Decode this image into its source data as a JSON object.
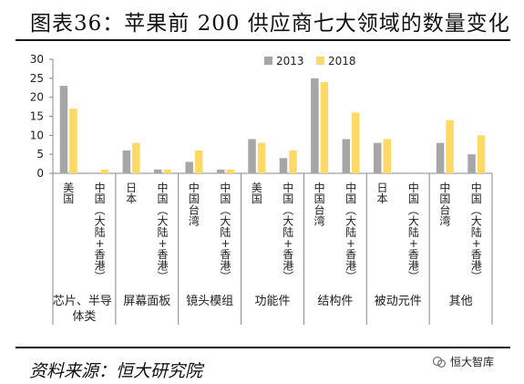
{
  "header": {
    "title": "图表36：苹果前 200 供应商七大领域的数量变化"
  },
  "footer": {
    "source": "资料来源：恒大研究院",
    "watermark": "恒大智库"
  },
  "colors": {
    "s2013": "#A6A6A6",
    "s2018": "#FFD966",
    "axis": "#888888",
    "text": "#222222"
  },
  "chart_data": {
    "type": "bar",
    "ylim": [
      0,
      30
    ],
    "yticks": [
      0,
      5,
      10,
      15,
      20,
      25,
      30
    ],
    "legend_position": "top-center",
    "grid": false,
    "groups": [
      {
        "name": "芯片、半导体类",
        "count": 2
      },
      {
        "name": "屏幕面板",
        "count": 2
      },
      {
        "name": "镜头模组",
        "count": 2
      },
      {
        "name": "功能件",
        "count": 2
      },
      {
        "name": "结构件",
        "count": 2
      },
      {
        "name": "被动元件",
        "count": 2
      },
      {
        "name": "其他",
        "count": 2
      }
    ],
    "categories": [
      "美国",
      "中国（大陆+香港）",
      "日本",
      "中国（大陆+香港）",
      "中国台湾",
      "中国（大陆+香港）",
      "美国",
      "中国（大陆+香港）",
      "中国台湾",
      "中国（大陆+香港）",
      "日本",
      "中国（大陆+香港）",
      "中国台湾",
      "中国（大陆+香港）"
    ],
    "series": [
      {
        "name": "2013",
        "values": [
          23,
          0,
          6,
          1,
          3,
          1,
          9,
          4,
          25,
          9,
          8,
          0,
          8,
          5
        ]
      },
      {
        "name": "2018",
        "values": [
          17,
          1,
          8,
          1,
          6,
          1,
          8,
          6,
          24,
          16,
          9,
          0,
          14,
          10
        ]
      }
    ]
  }
}
